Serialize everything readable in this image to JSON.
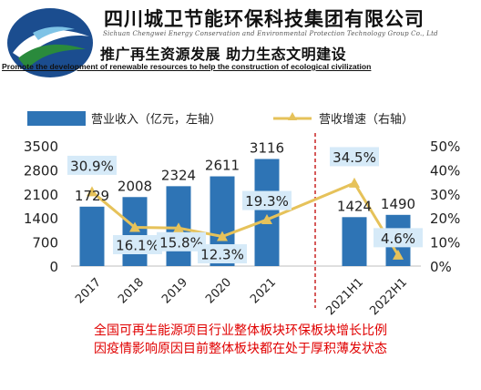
{
  "header": {
    "company_cn": "四川城卫节能环保科技集团有限公司",
    "company_en": "Sichuan Chengwei Energy Conservation and Environmental Protection Technology Group Co., Ltd",
    "slogan_cn": "推广再生资源发展  助力生态文明建设",
    "slogan_en": "Promote the development of renewable resources to help the construction of ecological civilization",
    "brand_color": "#1b4d8f",
    "accent_color": "#2a8a3c"
  },
  "chart_data": {
    "type": "bar",
    "categories": [
      "2017",
      "2018",
      "2019",
      "2020",
      "2021",
      "2021H1",
      "2022H1"
    ],
    "series": [
      {
        "name": "营业收入（亿元，左轴）",
        "kind": "bar",
        "axis": "left",
        "color": "#2e74b5",
        "values": [
          1729,
          2008,
          2324,
          2611,
          3116,
          1424,
          1490
        ],
        "labels": [
          "1729",
          "2008",
          "2324",
          "2611",
          "3116",
          "1424",
          "1490"
        ]
      },
      {
        "name": "营收增速（右轴）",
        "kind": "line",
        "axis": "right",
        "color": "#e6c25a",
        "values": [
          30.9,
          16.1,
          15.8,
          12.3,
          19.3,
          34.5,
          4.6
        ],
        "labels": [
          "30.9%",
          "16.1%",
          "15.8%",
          "12.3%",
          "19.3%",
          "34.5%",
          "4.6%"
        ]
      }
    ],
    "y_left": {
      "min": 0,
      "max": 3500,
      "ticks": [
        "0",
        "700",
        "1400",
        "2100",
        "2800",
        "3500"
      ]
    },
    "y_right": {
      "min": 0,
      "max": 50,
      "ticks": [
        "0%",
        "10%",
        "20%",
        "30%",
        "40%",
        "50%"
      ]
    },
    "separator_after": "2021",
    "separator_color": "#c00000",
    "label_box_color": "#d6eaf8",
    "legend_position": "top-left",
    "grid": false
  },
  "captions": [
    "全国可再生能源项目行业整体板块环保板块增长比例",
    "因疫情影响原因目前整体板块都在处于厚积薄发状态"
  ]
}
